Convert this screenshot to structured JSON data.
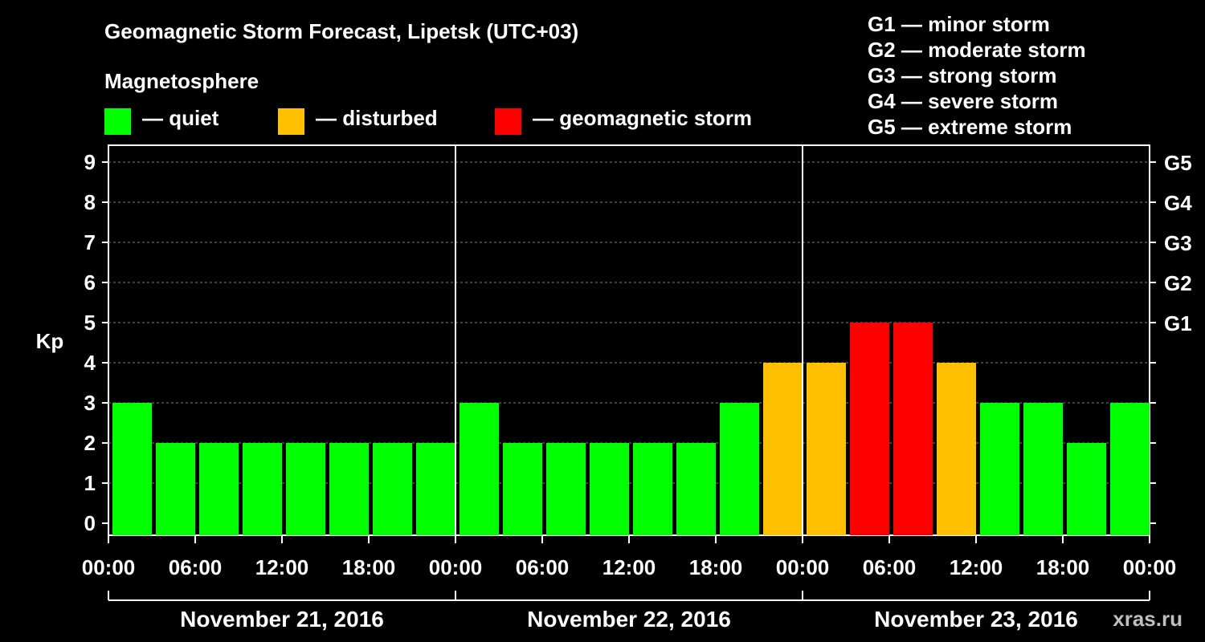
{
  "title": "Geomagnetic Storm Forecast, Lipetsk (UTC+03)",
  "legend": {
    "title": "Magnetosphere",
    "items": [
      {
        "label": "— quiet",
        "color": "#00ff00"
      },
      {
        "label": "— disturbed",
        "color": "#ffc000"
      },
      {
        "label": "— geomagnetic storm",
        "color": "#ff0000"
      }
    ]
  },
  "g_scale": [
    "G1 — minor storm",
    "G2 — moderate storm",
    "G3 — strong storm",
    "G4 — severe storm",
    "G5 — extreme storm"
  ],
  "watermark": "xras.ru",
  "colors": {
    "quiet": "#00ff00",
    "disturbed": "#ffc000",
    "storm": "#ff0000",
    "background": "#000000",
    "grid": "#808080"
  },
  "chart_data": {
    "type": "bar",
    "ylabel": "Kp",
    "ylim": [
      0,
      9
    ],
    "yticks": [
      "0",
      "1",
      "2",
      "3",
      "4",
      "5",
      "6",
      "7",
      "8",
      "9"
    ],
    "right_ticks": [
      {
        "kp": 5,
        "label": "G1"
      },
      {
        "kp": 6,
        "label": "G2"
      },
      {
        "kp": 7,
        "label": "G3"
      },
      {
        "kp": 8,
        "label": "G4"
      },
      {
        "kp": 9,
        "label": "G5"
      }
    ],
    "grid": true,
    "xticks": [
      "00:00",
      "06:00",
      "12:00",
      "18:00",
      "00:00",
      "06:00",
      "12:00",
      "18:00",
      "00:00",
      "06:00",
      "12:00",
      "18:00",
      "00:00"
    ],
    "days": [
      "November 21, 2016",
      "November 22, 2016",
      "November 23, 2016"
    ],
    "bars_per_day": 8,
    "values": [
      3,
      2,
      2,
      2,
      2,
      2,
      2,
      2,
      3,
      2,
      2,
      2,
      2,
      2,
      3,
      4,
      4,
      5,
      5,
      4,
      3,
      3,
      2,
      3
    ],
    "levels": [
      "quiet",
      "quiet",
      "quiet",
      "quiet",
      "quiet",
      "quiet",
      "quiet",
      "quiet",
      "quiet",
      "quiet",
      "quiet",
      "quiet",
      "quiet",
      "quiet",
      "quiet",
      "disturbed",
      "disturbed",
      "storm",
      "storm",
      "disturbed",
      "quiet",
      "quiet",
      "quiet",
      "quiet"
    ]
  }
}
